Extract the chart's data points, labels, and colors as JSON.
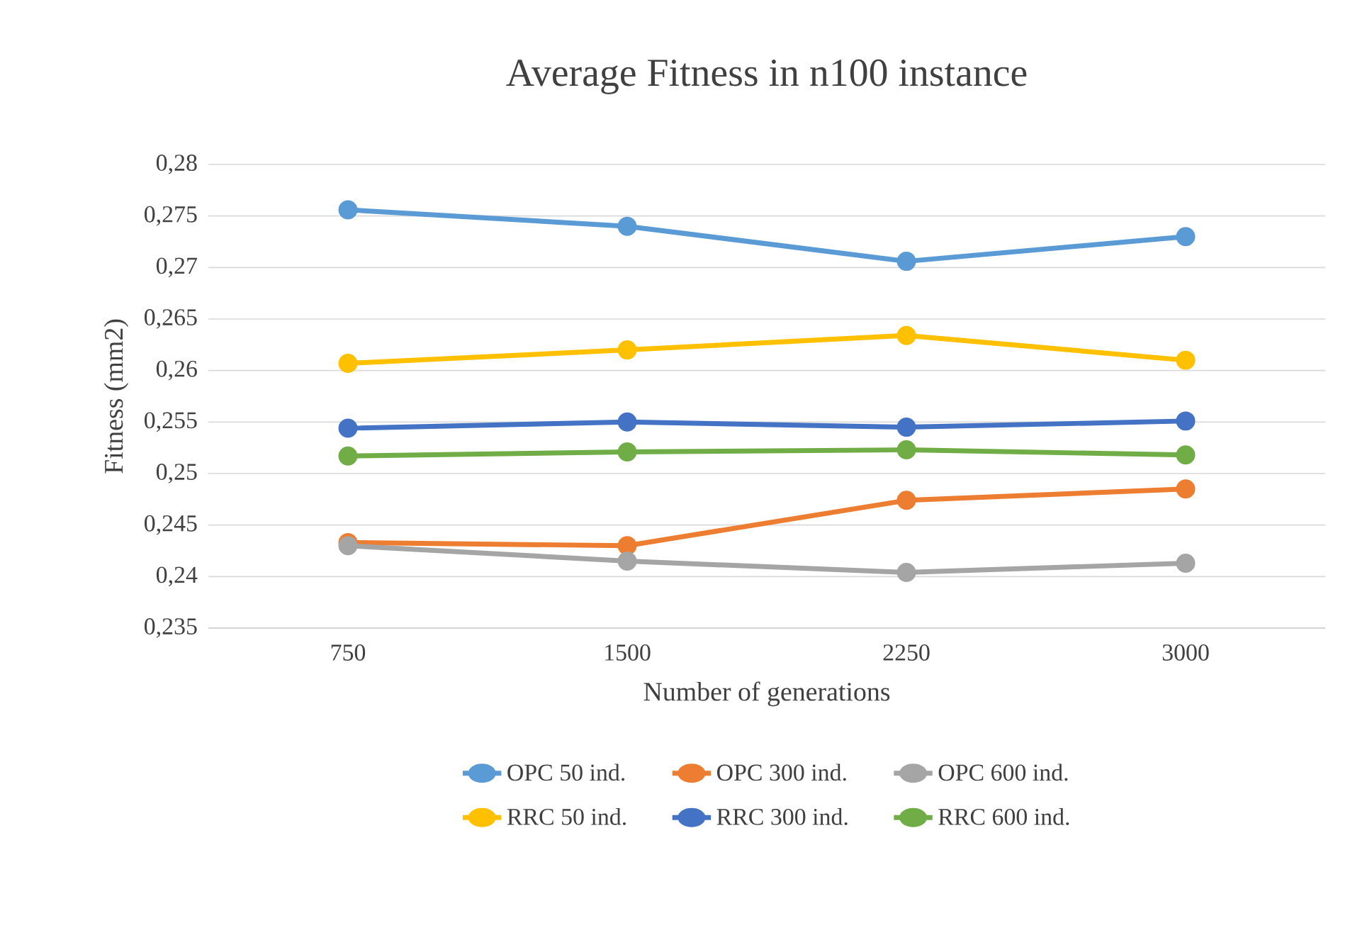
{
  "chart_data": {
    "type": "line",
    "title": "Average Fitness in n100 instance",
    "xlabel": "Number of generations",
    "ylabel": "Fitness (mm2)",
    "categories": [
      "750",
      "1500",
      "2250",
      "3000"
    ],
    "series": [
      {
        "name": "OPC 50 ind.",
        "color": "#5b9bd5",
        "values": [
          0.2756,
          0.274,
          0.2706,
          0.273
        ]
      },
      {
        "name": "OPC 300 ind.",
        "color": "#ed7d31",
        "values": [
          0.2433,
          0.243,
          0.2474,
          0.2485
        ]
      },
      {
        "name": "OPC 600 ind.",
        "color": "#a5a5a5",
        "values": [
          0.243,
          0.2415,
          0.2404,
          0.2413
        ]
      },
      {
        "name": "RRC 50 ind.",
        "color": "#ffc000",
        "values": [
          0.2607,
          0.262,
          0.2634,
          0.261
        ]
      },
      {
        "name": "RRC 300 ind.",
        "color": "#4472c4",
        "values": [
          0.2544,
          0.255,
          0.2545,
          0.2551
        ]
      },
      {
        "name": "RRC 600 ind.",
        "color": "#70ad47",
        "values": [
          0.2517,
          0.2521,
          0.2523,
          0.2518
        ]
      }
    ],
    "ylim": [
      0.235,
      0.28
    ],
    "yticks": [
      {
        "value": 0.235,
        "label": "0,235"
      },
      {
        "value": 0.24,
        "label": "0,24"
      },
      {
        "value": 0.245,
        "label": "0,245"
      },
      {
        "value": 0.25,
        "label": "0,25"
      },
      {
        "value": 0.255,
        "label": "0,255"
      },
      {
        "value": 0.26,
        "label": "0,26"
      },
      {
        "value": 0.265,
        "label": "0,265"
      },
      {
        "value": 0.27,
        "label": "0,27"
      },
      {
        "value": 0.275,
        "label": "0,275"
      },
      {
        "value": 0.28,
        "label": "0,28"
      }
    ],
    "grid": "y",
    "legend": "bottom",
    "marker": "circle",
    "line_style": "solid"
  }
}
